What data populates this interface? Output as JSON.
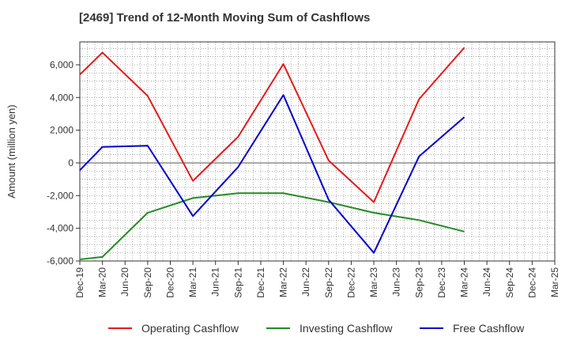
{
  "chart_data": {
    "type": "line",
    "title": "[2469]  Trend of 12-Month Moving Sum of Cashflows",
    "xlabel": "",
    "ylabel": "Amount (million yen)",
    "ylim": [
      -6000,
      7400
    ],
    "yticks": [
      -6000,
      -4000,
      -2000,
      0,
      2000,
      4000,
      6000
    ],
    "ytick_labels": [
      "-6,000",
      "-4,000",
      "-2,000",
      "0",
      "2,000",
      "4,000",
      "6,000"
    ],
    "categories": [
      "Dec-19",
      "Mar-20",
      "Jun-20",
      "Sep-20",
      "Dec-20",
      "Mar-21",
      "Jun-21",
      "Sep-21",
      "Dec-21",
      "Mar-22",
      "Jun-22",
      "Sep-22",
      "Dec-22",
      "Mar-23",
      "Jun-23",
      "Sep-23",
      "Dec-23",
      "Mar-24",
      "Jun-24",
      "Sep-24",
      "Dec-24",
      "Mar-25"
    ],
    "grid": true,
    "legend_position": "bottom",
    "series": [
      {
        "name": "Operating Cashflow",
        "color": "#e31a1c",
        "values": [
          5400,
          6750,
          null,
          4100,
          null,
          -1100,
          null,
          1600,
          null,
          6050,
          null,
          150,
          null,
          -2400,
          null,
          3900,
          null,
          7050,
          null,
          null,
          null,
          null
        ]
      },
      {
        "name": "Investing Cashflow",
        "color": "#228b22",
        "values": [
          -5900,
          -5750,
          null,
          -3050,
          null,
          -2150,
          null,
          -1850,
          null,
          -1850,
          null,
          -2400,
          null,
          -3050,
          null,
          -3500,
          null,
          -4200,
          null,
          null,
          null,
          null
        ]
      },
      {
        "name": "Free Cashflow",
        "color": "#0000cd",
        "values": [
          -450,
          980,
          null,
          1050,
          null,
          -3250,
          null,
          -250,
          null,
          4150,
          null,
          -2250,
          null,
          -5500,
          null,
          400,
          null,
          2800,
          null,
          null,
          null,
          null
        ]
      }
    ]
  }
}
